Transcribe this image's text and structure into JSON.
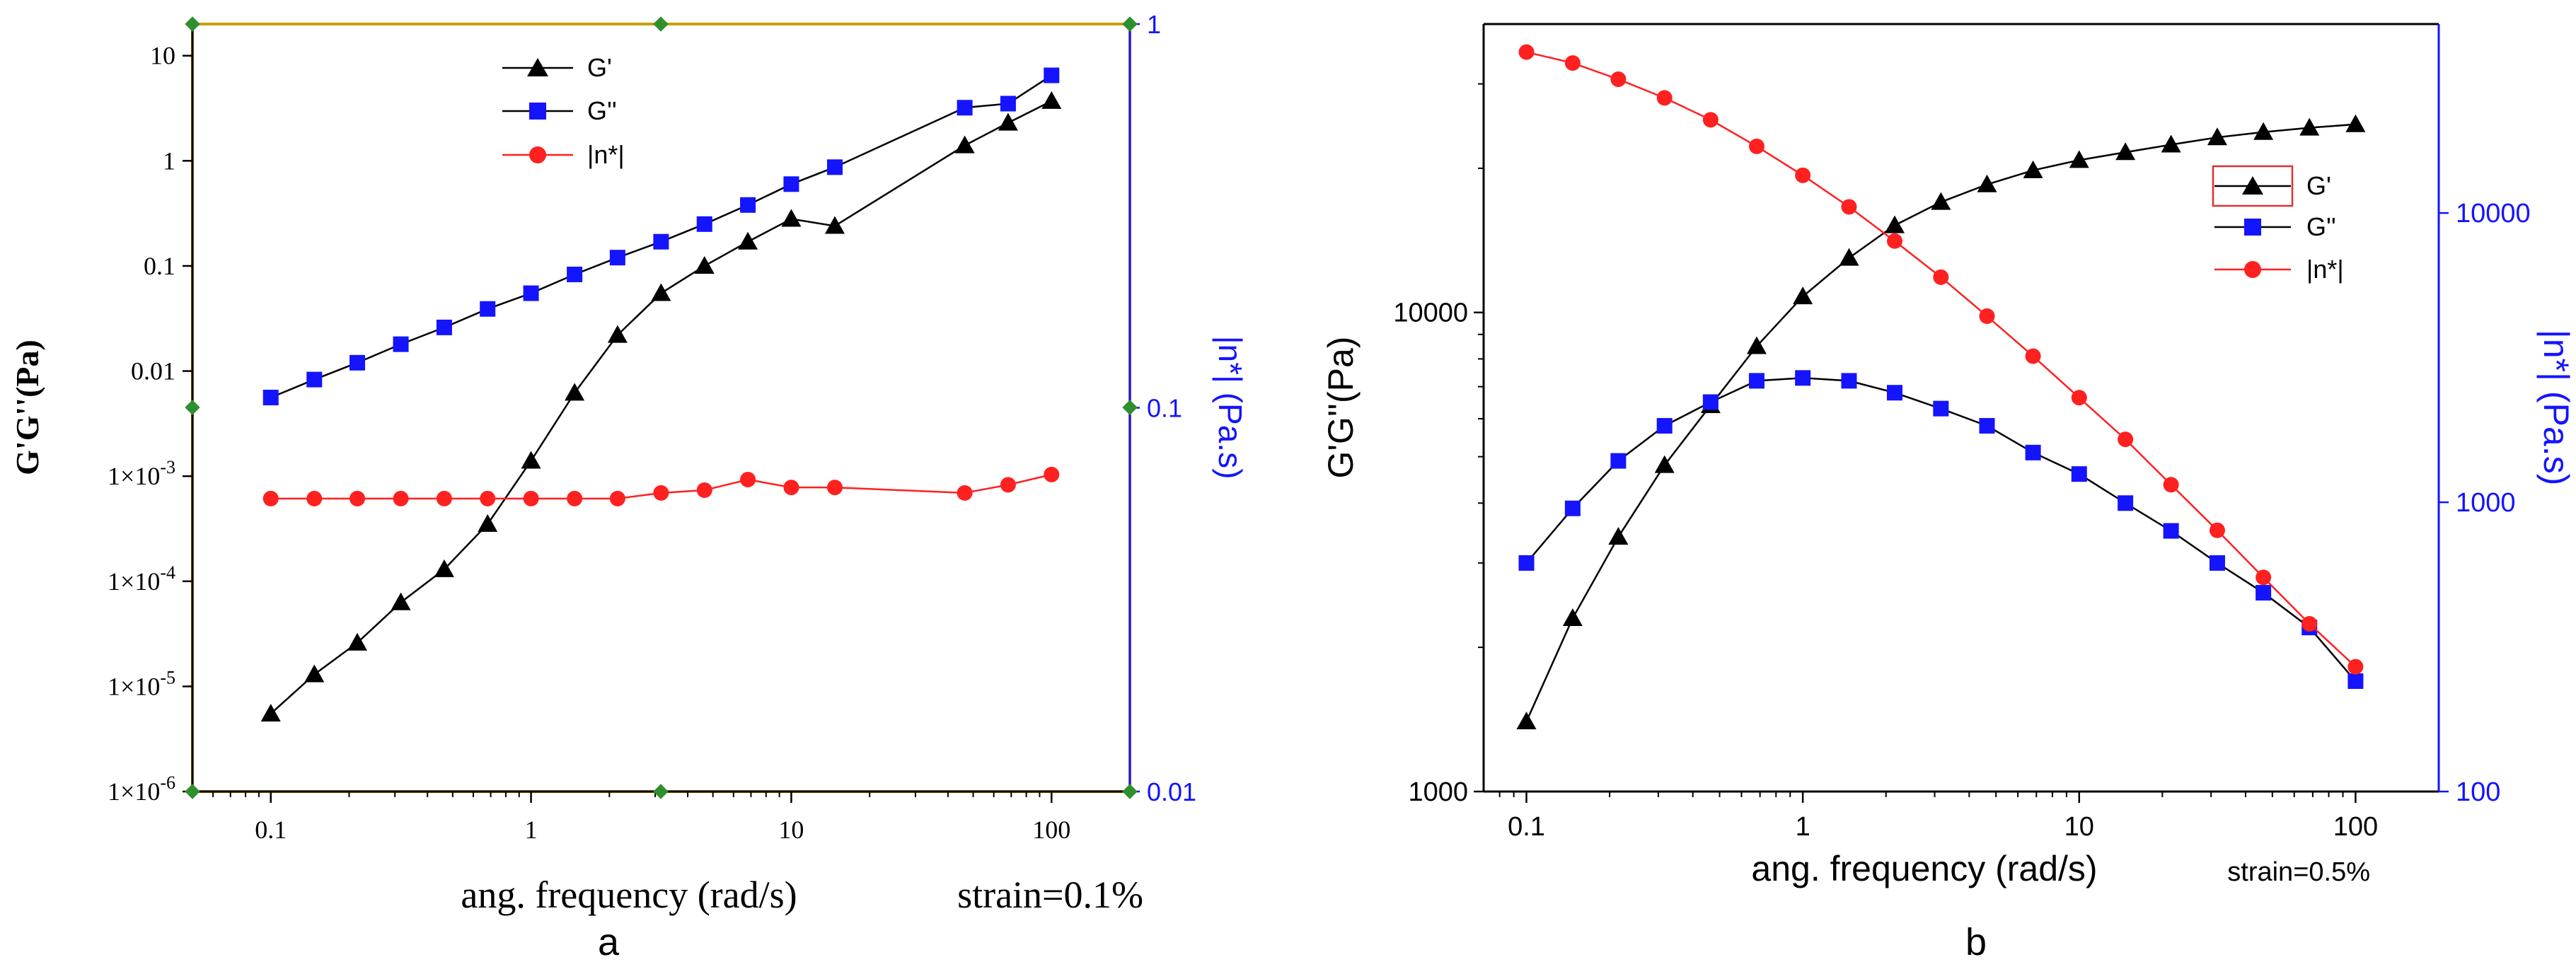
{
  "colors": {
    "gprime": "#000000",
    "gdouble": "#1414ff",
    "eta": "#ff2020",
    "right_axis": "#1414ff",
    "frame_a": "#c8a000",
    "axis": "#000000",
    "legend_box_b": "#e03030",
    "corner_markers": "#2f8f2f"
  },
  "chart_data": [
    {
      "panel": "a",
      "type": "line",
      "xscale": "log",
      "x_tick_labels": [
        "0.1",
        "1",
        "10",
        "100"
      ],
      "xlabel": "ang. frequency (rad/s)",
      "annotation": "strain=0.1%",
      "caption": "a",
      "ylabel": "G'G''(Pa)",
      "ylabel_right": "|n*| (Pa.s)",
      "y_tick_labels": [
        {
          "value": 10,
          "text": "10"
        },
        {
          "value": 1,
          "text": "1"
        },
        {
          "value": 0.1,
          "text": "0.1"
        },
        {
          "value": 0.01,
          "text": "0.01"
        },
        {
          "mant": "1",
          "times": "×",
          "base": "10",
          "exp": "-3",
          "value": 0.001
        },
        {
          "mant": "1",
          "times": "×",
          "base": "10",
          "exp": "-4",
          "value": 0.0001
        },
        {
          "mant": "1",
          "times": "×",
          "base": "10",
          "exp": "-5",
          "value": 1e-05
        },
        {
          "mant": "1",
          "times": "×",
          "base": "10",
          "exp": "-6",
          "value": 1e-06
        }
      ],
      "y2_tick_labels": [
        "1",
        "0.1",
        "0.01"
      ],
      "xlim": [
        0.05,
        200
      ],
      "ylim": [
        1e-06,
        20
      ],
      "y2lim": [
        0.01,
        1
      ],
      "legend": [
        "G'",
        "G''",
        "|n*|"
      ],
      "series": [
        {
          "name": "G'",
          "marker": "triangle",
          "axis": "left",
          "x": [
            0.1,
            0.147,
            0.215,
            0.316,
            0.464,
            0.681,
            1,
            1.47,
            2.15,
            3.16,
            4.64,
            6.81,
            10,
            14.7,
            46.4,
            68.1,
            100
          ],
          "y": [
            5.5e-06,
            1.3e-05,
            2.6e-05,
            6.3e-05,
            0.00013,
            0.00035,
            0.0014,
            0.0062,
            0.022,
            0.055,
            0.1,
            0.17,
            0.28,
            0.24,
            1.4,
            2.3,
            3.7
          ]
        },
        {
          "name": "G''",
          "marker": "square",
          "axis": "left",
          "x": [
            0.1,
            0.147,
            0.215,
            0.316,
            0.464,
            0.681,
            1,
            1.47,
            2.15,
            3.16,
            4.64,
            6.81,
            10,
            14.7,
            46.4,
            68.1,
            100
          ],
          "y": [
            0.0056,
            0.0083,
            0.012,
            0.018,
            0.026,
            0.039,
            0.055,
            0.083,
            0.12,
            0.17,
            0.25,
            0.38,
            0.6,
            0.87,
            3.2,
            3.5,
            6.5
          ]
        },
        {
          "name": "|n*|",
          "marker": "circle",
          "axis": "right",
          "x": [
            0.1,
            0.147,
            0.215,
            0.316,
            0.464,
            0.681,
            1,
            1.47,
            2.15,
            3.16,
            4.64,
            6.81,
            10,
            14.7,
            46.4,
            68.1,
            100
          ],
          "y": [
            0.058,
            0.058,
            0.058,
            0.058,
            0.058,
            0.058,
            0.058,
            0.058,
            0.058,
            0.06,
            0.061,
            0.065,
            0.062,
            0.062,
            0.06,
            0.063,
            0.067
          ]
        }
      ]
    },
    {
      "panel": "b",
      "type": "line",
      "xscale": "log",
      "x_tick_labels": [
        "0.1",
        "1",
        "10",
        "100"
      ],
      "xlabel": "ang. frequency (rad/s)",
      "annotation": "strain=0.5%",
      "caption": "b",
      "ylabel": "G'G''(Pa)",
      "ylabel_right": "|n*| (Pa.s)",
      "y_tick_labels": [
        "10000",
        "1000"
      ],
      "y2_tick_labels": [
        "10000",
        "1000",
        "100"
      ],
      "xlim": [
        0.07,
        200
      ],
      "ylim": [
        1000,
        40000
      ],
      "y2lim": [
        100,
        45000
      ],
      "legend": [
        "G'",
        "G''",
        "|n*|"
      ],
      "series": [
        {
          "name": "G'",
          "marker": "triangle",
          "axis": "left",
          "x": [
            0.1,
            0.147,
            0.215,
            0.316,
            0.464,
            0.681,
            1,
            1.47,
            2.15,
            3.16,
            4.64,
            6.81,
            10,
            14.7,
            21.5,
            31.6,
            46.4,
            68.1,
            100
          ],
          "y": [
            1400,
            2300,
            3400,
            4800,
            6400,
            8500,
            10800,
            13000,
            15200,
            17000,
            18500,
            19800,
            20800,
            21600,
            22400,
            23200,
            23800,
            24300,
            24700
          ]
        },
        {
          "name": "G''",
          "marker": "square",
          "axis": "left",
          "x": [
            0.1,
            0.147,
            0.215,
            0.316,
            0.464,
            0.681,
            1,
            1.47,
            2.15,
            3.16,
            4.64,
            6.81,
            10,
            14.7,
            21.5,
            31.6,
            46.4,
            68.1,
            100
          ],
          "y": [
            3000,
            3900,
            4900,
            5800,
            6500,
            7200,
            7300,
            7200,
            6800,
            6300,
            5800,
            5100,
            4600,
            4000,
            3500,
            3000,
            2600,
            2200,
            1700
          ]
        },
        {
          "name": "|n*|",
          "marker": "circle",
          "axis": "right",
          "x": [
            0.1,
            0.147,
            0.215,
            0.316,
            0.464,
            0.681,
            1,
            1.47,
            2.15,
            3.16,
            4.64,
            6.81,
            10,
            14.7,
            21.5,
            31.6,
            46.4,
            68.1,
            100
          ],
          "y": [
            36000,
            33000,
            29000,
            25000,
            21000,
            17000,
            13500,
            10500,
            8000,
            6000,
            4400,
            3200,
            2300,
            1650,
            1150,
            800,
            550,
            380,
            270
          ]
        }
      ]
    }
  ]
}
